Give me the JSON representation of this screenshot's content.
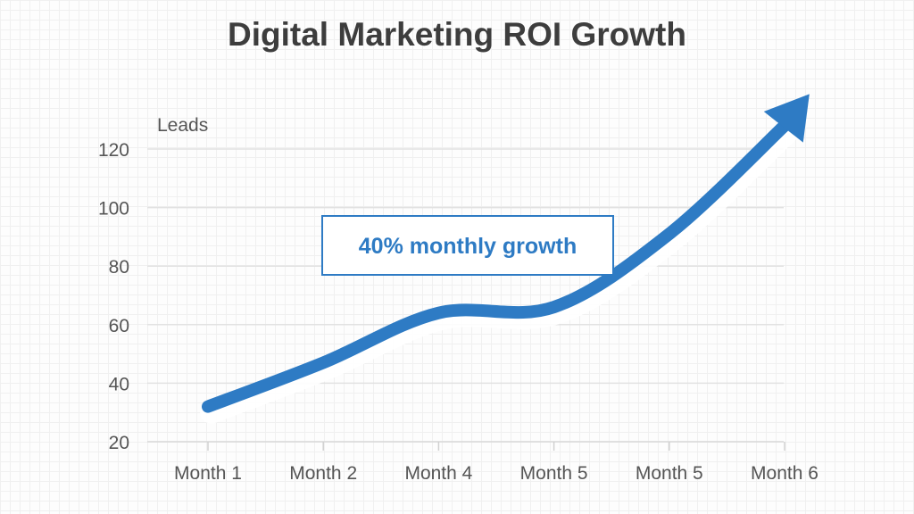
{
  "chart_data": {
    "type": "line",
    "title": "Digital Marketing ROI Growth",
    "ylabel": "Leads",
    "xlabel": "",
    "categories": [
      "Month 1",
      "Month 2",
      "Month 4",
      "Month 5",
      "Month 5",
      "Month 6"
    ],
    "series": [
      {
        "values": [
          32,
          47,
          64,
          66,
          91,
          128
        ]
      }
    ],
    "yticks": [
      20,
      40,
      60,
      80,
      100,
      120
    ],
    "ylim": [
      20,
      120
    ],
    "grid": true,
    "annotation": "40% monthly growth",
    "line_end": "arrow",
    "colors": {
      "line": "#2e7bc4",
      "annotation": "#2e7bc4",
      "grid": "#e2e2e2",
      "text": "#555555",
      "title": "#3d3d3d"
    }
  }
}
